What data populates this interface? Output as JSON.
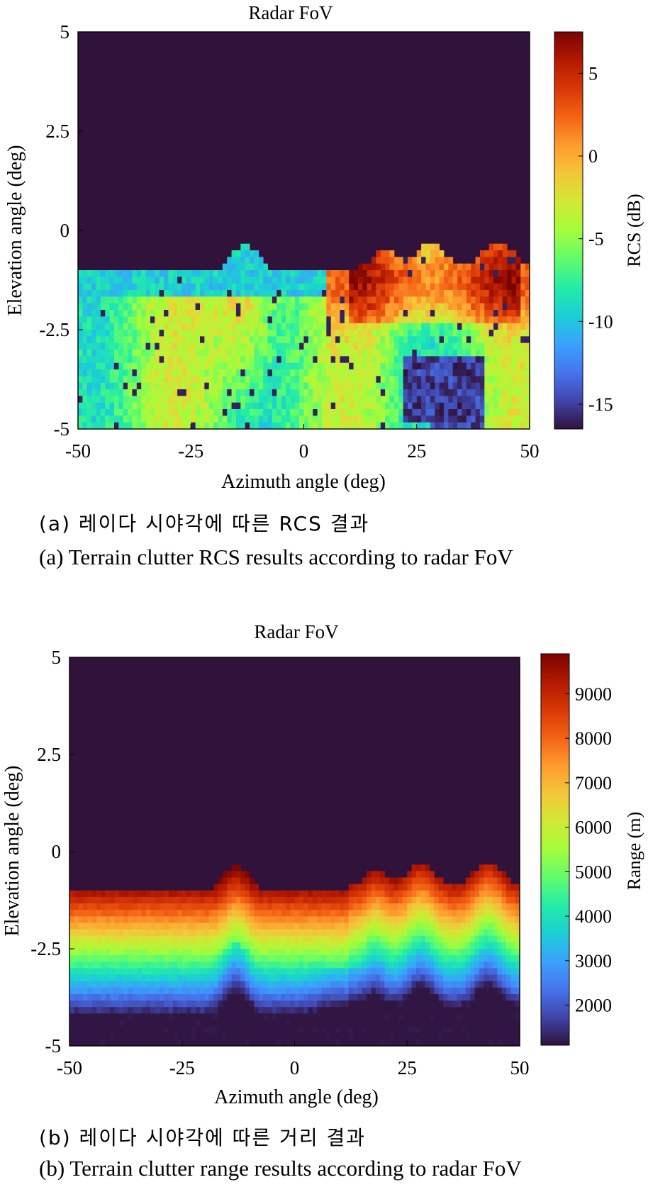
{
  "chart_data": [
    {
      "type": "heatmap",
      "title": "Radar FoV",
      "xlabel": "Azimuth angle (deg)",
      "ylabel": "Elevation angle (deg)",
      "xlim": [
        -50,
        50
      ],
      "ylim": [
        -5,
        5
      ],
      "xticks": [
        "-50",
        "-25",
        "0",
        "25",
        "50"
      ],
      "yticks": [
        "5",
        "2.5",
        "0",
        "-2.5",
        "-5"
      ],
      "colorbar": {
        "label": "RCS (dB)",
        "range": [
          -16.5,
          7.5
        ],
        "ticks": [
          "5",
          "0",
          "-5",
          "-10",
          "-15"
        ],
        "tick_values": [
          5,
          0,
          -5,
          -10,
          -15
        ]
      },
      "terrain_edge_elevation_deg": -1.0,
      "background_value": -16.5,
      "caption_ko": "(a) 레이다 시야각에 따른 RCS 결과",
      "caption_en": "(a) Terrain clutter RCS results according to radar FoV"
    },
    {
      "type": "heatmap",
      "title": "Radar FoV",
      "xlabel": "Azimuth angle (deg)",
      "ylabel": "Elevation angle (deg)",
      "xlim": [
        -50,
        50
      ],
      "ylim": [
        -5,
        5
      ],
      "xticks": [
        "-50",
        "-25",
        "0",
        "25",
        "50"
      ],
      "yticks": [
        "5",
        "2.5",
        "0",
        "-2.5",
        "-5"
      ],
      "colorbar": {
        "label": "Range (m)",
        "range": [
          1100,
          9900
        ],
        "ticks": [
          "9000",
          "8000",
          "7000",
          "6000",
          "5000",
          "4000",
          "3000",
          "2000"
        ],
        "tick_values": [
          9000,
          8000,
          7000,
          6000,
          5000,
          4000,
          3000,
          2000
        ]
      },
      "terrain_edge_elevation_deg": -1.0,
      "background_value": 1100,
      "caption_ko": "(b) 레이다 시야각에 따른 거리 결과",
      "caption_en": "(b) Terrain clutter range results according to radar FoV"
    }
  ],
  "colors": {
    "parula": [
      "#3e26a8",
      "#4743f8",
      "#2d8cf3",
      "#14b7d6",
      "#3ecc94",
      "#b1c83e",
      "#fcbb3d",
      "#f5e52c"
    ],
    "jet_like": [
      "#30123b",
      "#4145ab",
      "#4675ed",
      "#39a2fc",
      "#1bcfd4",
      "#24eca6",
      "#61fc6c",
      "#a4fc3b",
      "#d1e834",
      "#f3c63a",
      "#fe9b2d",
      "#f36315",
      "#d93806",
      "#b11901",
      "#7a0402"
    ]
  }
}
